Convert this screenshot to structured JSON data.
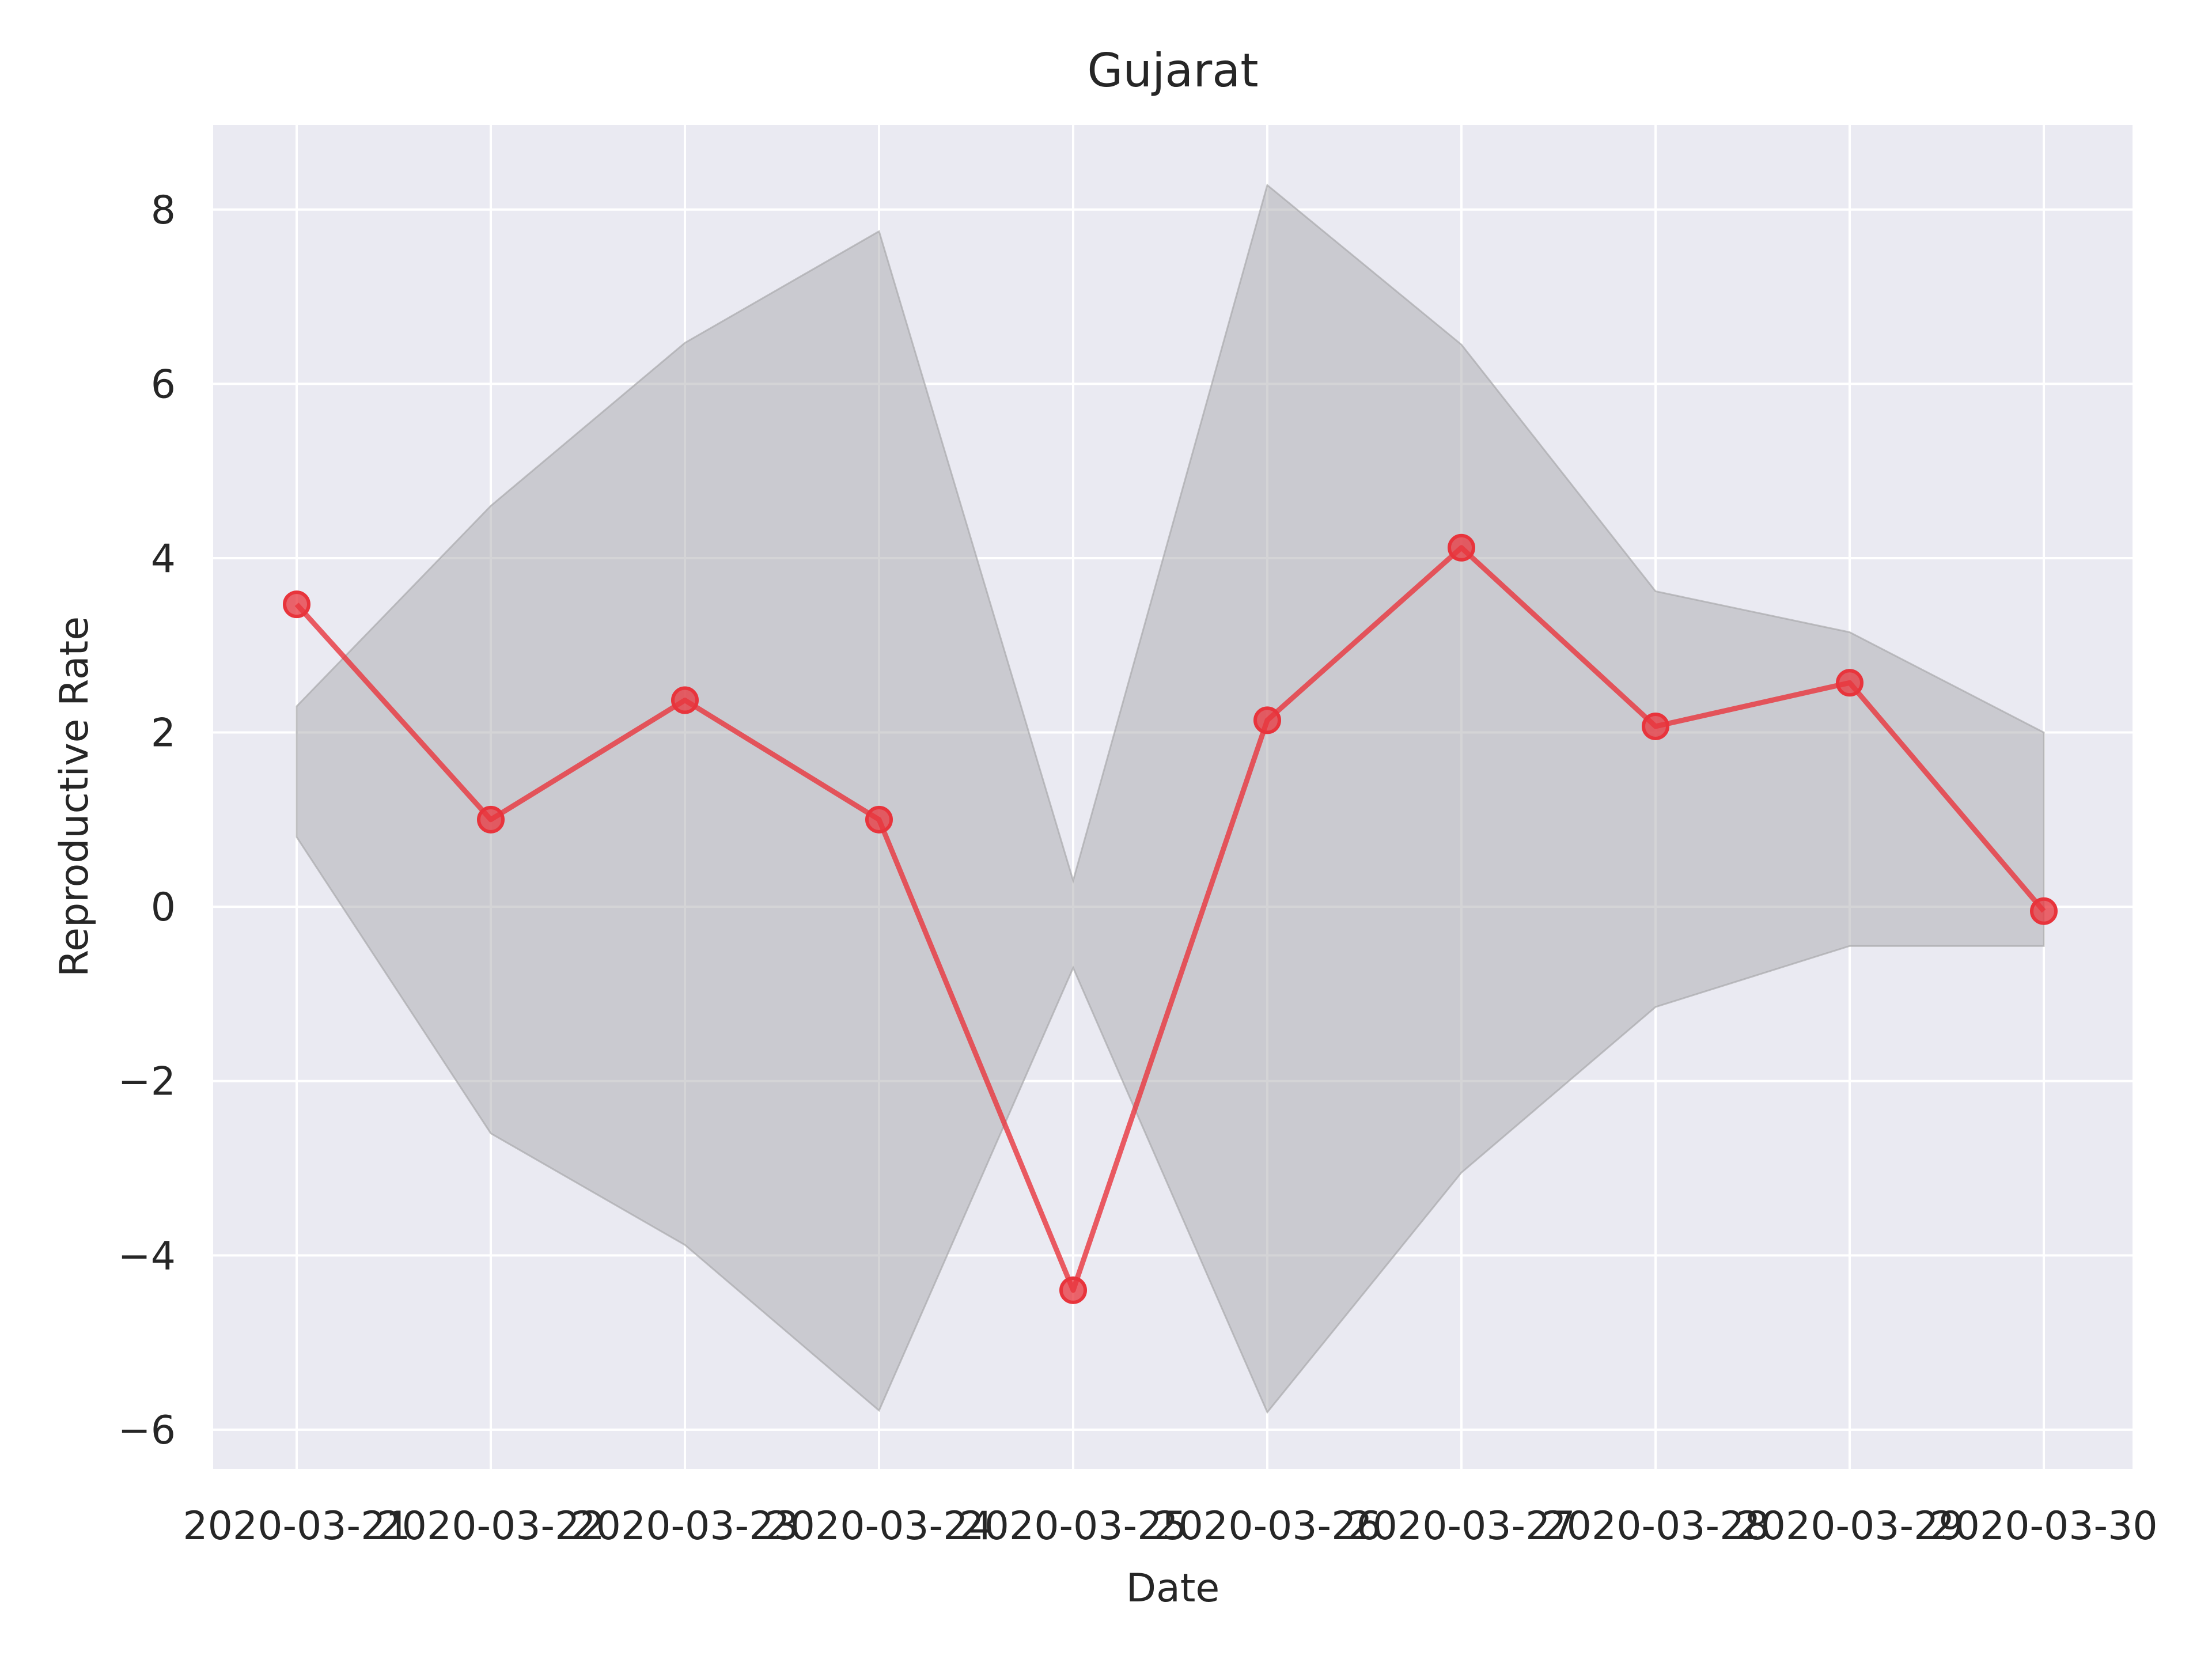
{
  "chart_data": {
    "type": "line",
    "title": "Gujarat",
    "xlabel": "Date",
    "ylabel": "Reproductive Rate",
    "categories": [
      "2020-03-21",
      "2020-03-22",
      "2020-03-23",
      "2020-03-24",
      "2020-03-25",
      "2020-03-26",
      "2020-03-27",
      "2020-03-28",
      "2020-03-29",
      "2020-03-30"
    ],
    "values": [
      3.47,
      1.0,
      2.37,
      1.0,
      -4.4,
      2.14,
      4.12,
      2.07,
      2.57,
      -0.05
    ],
    "band_upper": [
      2.3,
      4.6,
      6.47,
      7.75,
      0.3,
      8.28,
      6.45,
      3.62,
      3.15,
      2.0
    ],
    "band_lower": [
      0.8,
      -2.6,
      -3.88,
      -5.78,
      -0.7,
      -5.8,
      -3.05,
      -1.15,
      -0.45,
      -0.45
    ],
    "ylim": [
      -6.45,
      8.97
    ],
    "yticks": [
      -6,
      -4,
      -2,
      0,
      2,
      4,
      6,
      8
    ],
    "ytick_labels": [
      "−6",
      "−4",
      "−2",
      "0",
      "2",
      "4",
      "6",
      "8"
    ],
    "grid": true,
    "colors": {
      "background": "#eaeaf2",
      "grid": "#ffffff",
      "line": "#e8343c",
      "band": "#a9a9ad"
    }
  }
}
